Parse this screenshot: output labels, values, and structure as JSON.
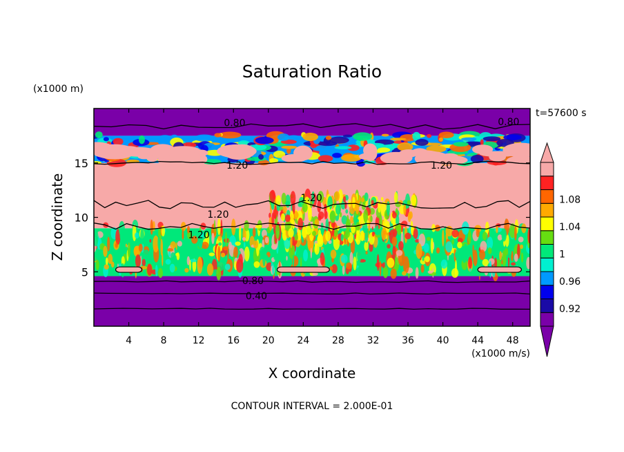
{
  "chart_data": {
    "type": "heatmap",
    "title": "Saturation Ratio",
    "xlabel": "X coordinate",
    "ylabel": "Z coordinate",
    "x_units": "(x1000 m/s)",
    "y_units": "(x1000 m)",
    "time_label": "t=57600 s",
    "footer": "CONTOUR INTERVAL = 2.000E-01",
    "xlim": [
      0,
      50
    ],
    "ylim": [
      0,
      20
    ],
    "x_ticks": [
      4,
      8,
      12,
      16,
      20,
      24,
      28,
      32,
      36,
      40,
      44,
      48
    ],
    "y_ticks": [
      5,
      10,
      15
    ],
    "colorbar": {
      "tick_labels": [
        "0.92",
        "0.96",
        "1",
        "1.04",
        "1.08"
      ],
      "colors": [
        "#7a00a8",
        "#1a0aa6",
        "#0000ee",
        "#0099ff",
        "#00f0d0",
        "#00e87a",
        "#66dd11",
        "#ffff00",
        "#ffaa00",
        "#ff6600",
        "#ff2222",
        "#f7a9a8"
      ]
    },
    "contour_labels": [
      {
        "text": "0.80",
        "x": 14.9,
        "z": 18.7
      },
      {
        "text": "0.80",
        "x": 46.3,
        "z": 18.8
      },
      {
        "text": "1.20",
        "x": 15.2,
        "z": 14.8
      },
      {
        "text": "1.20",
        "x": 38.6,
        "z": 14.8
      },
      {
        "text": "1.20",
        "x": 23.7,
        "z": 11.8
      },
      {
        "text": "1.20",
        "x": 13.0,
        "z": 10.3
      },
      {
        "text": "1.20",
        "x": 10.8,
        "z": 8.4
      },
      {
        "text": "0.80",
        "x": 17.0,
        "z": 4.2
      },
      {
        "text": "0.40",
        "x": 17.4,
        "z": 2.8
      }
    ],
    "regions": [
      {
        "z": [
          0,
          4.6
        ],
        "x": [
          0,
          50
        ],
        "value": "< 0.90",
        "color": "#7a00a8"
      },
      {
        "z": [
          4.6,
          9.0
        ],
        "x": [
          0,
          50
        ],
        "value": "0.96-1.04 (mixed, cloudy)",
        "color": "#00e87a"
      },
      {
        "z": [
          9.0,
          15.0
        ],
        "x": [
          0,
          50
        ],
        "value": "> 1.10",
        "color": "#f7a9a8"
      },
      {
        "z": [
          15.0,
          17.5
        ],
        "x": [
          0,
          50
        ],
        "value": "0.90-1.10 (transition band)",
        "color": "#0099ff"
      },
      {
        "z": [
          17.5,
          20
        ],
        "x": [
          0,
          50
        ],
        "value": "< 0.90",
        "color": "#7a00a8"
      }
    ]
  }
}
